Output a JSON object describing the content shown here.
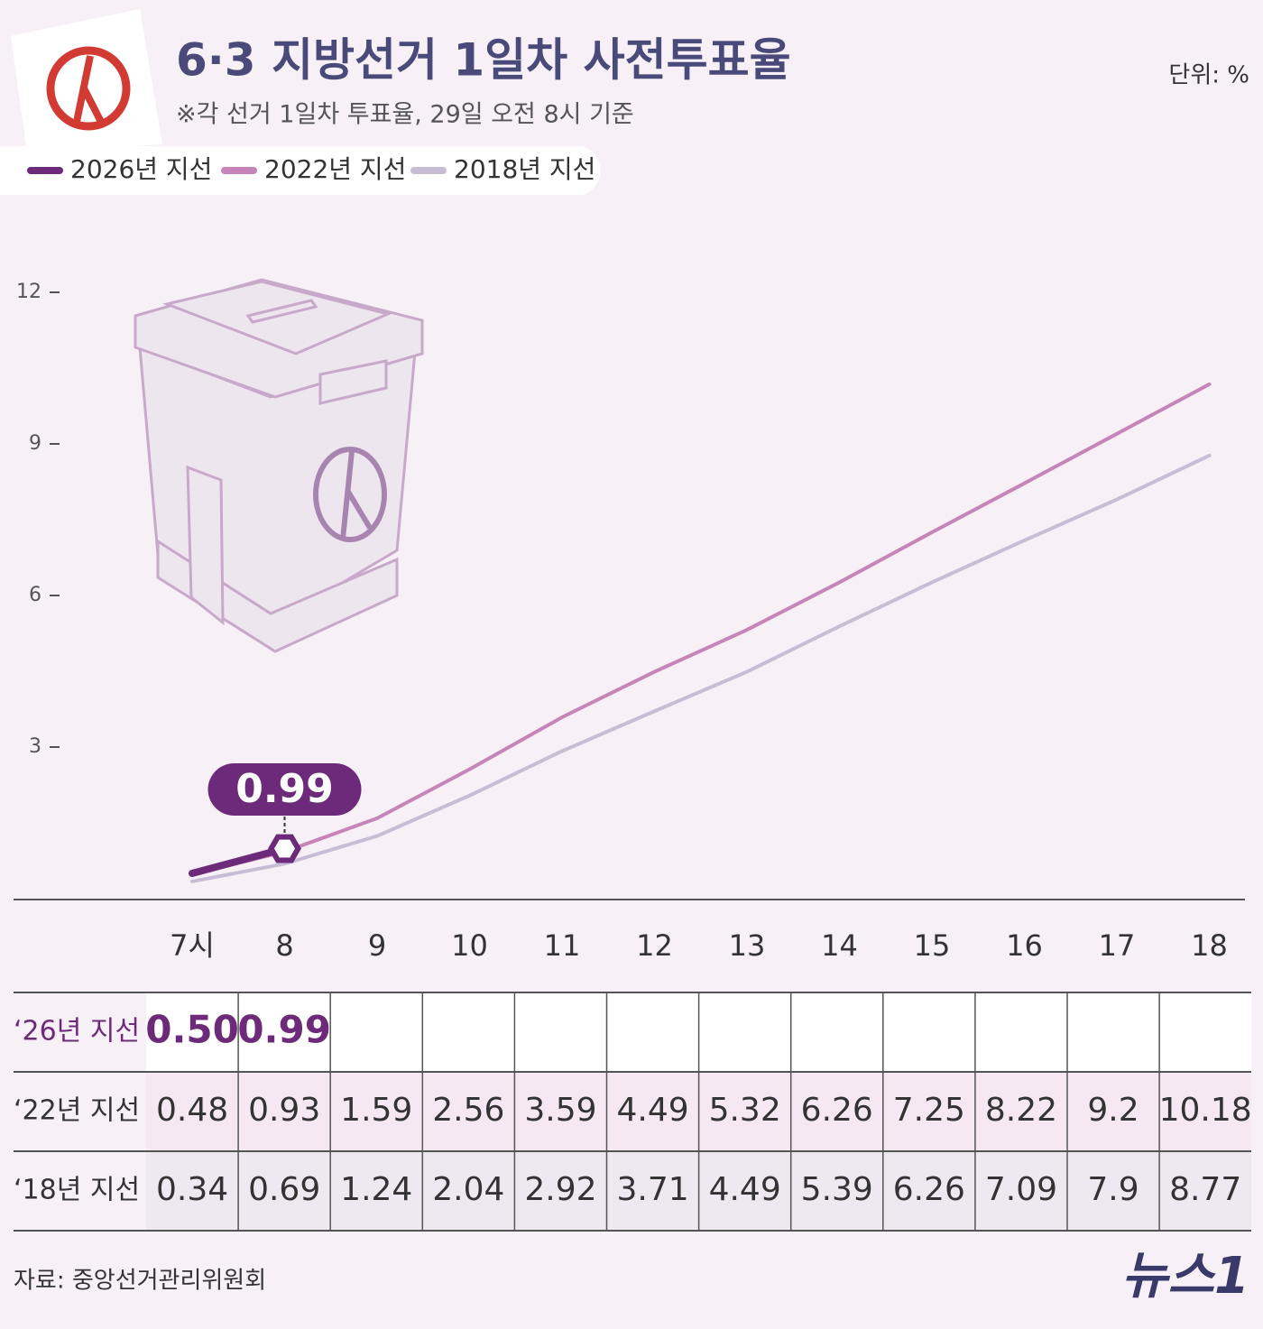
{
  "chart_data": {
    "type": "line",
    "title": "6·3 지방선거 1일차 사전투표율",
    "subtitle": "※각 선거 1일차 투표율, 29일 오전 8시 기준",
    "unit": "단위: %",
    "source": "자료: 중앙선거관리위원회",
    "logo": "뉴스1",
    "categories": [
      "7시",
      "8",
      "9",
      "10",
      "11",
      "12",
      "13",
      "14",
      "15",
      "16",
      "17",
      "18"
    ],
    "series": [
      {
        "name": "2026년 지선",
        "color": "#6e2a7a",
        "values": [
          0.5,
          0.99,
          null,
          null,
          null,
          null,
          null,
          null,
          null,
          null,
          null,
          null
        ],
        "value_labels": [
          "0.50",
          "0.99",
          null,
          null,
          null,
          null,
          null,
          null,
          null,
          null,
          null,
          null
        ]
      },
      {
        "name": "2022년 지선",
        "color": "#c784b8",
        "values": [
          0.48,
          0.93,
          1.59,
          2.56,
          3.59,
          4.49,
          5.32,
          6.26,
          7.25,
          8.22,
          9.2,
          10.18
        ]
      },
      {
        "name": "2018년 지선",
        "color": "#c9bdd6",
        "values": [
          0.34,
          0.69,
          1.24,
          2.04,
          2.92,
          3.71,
          4.49,
          5.39,
          6.26,
          7.09,
          7.9,
          8.77
        ]
      }
    ],
    "row_labels": [
      "‘26년 지선",
      "‘22년 지선",
      "‘18년 지선"
    ],
    "ylim": [
      0,
      12
    ],
    "yticks": [
      3,
      6,
      9,
      12
    ],
    "legend": "top"
  }
}
